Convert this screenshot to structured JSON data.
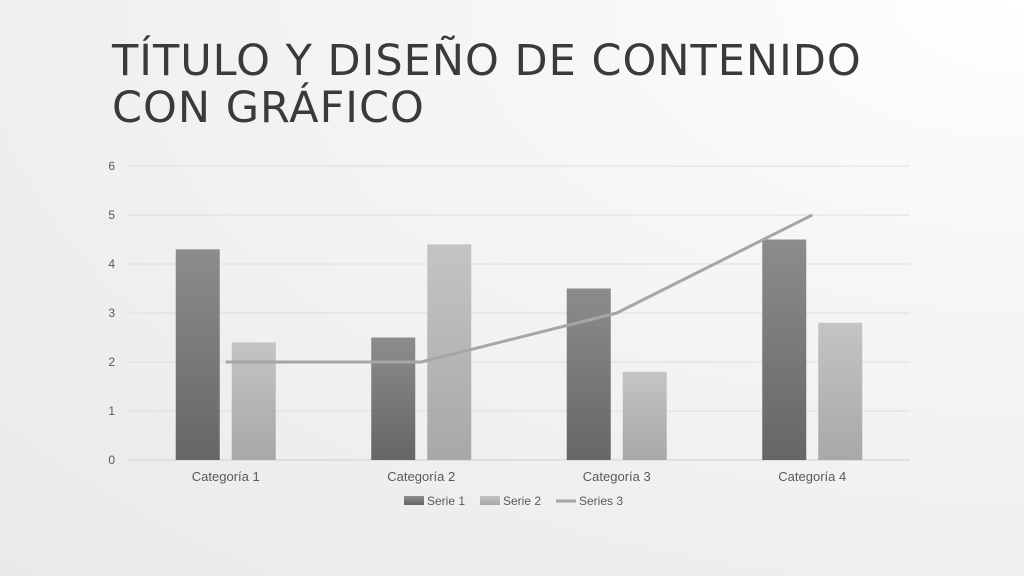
{
  "slide": {
    "title": "TÍTULO Y DISEÑO DE CONTENIDO CON GRÁFICO"
  },
  "chart_data": {
    "type": "bar",
    "categories": [
      "Categoría 1",
      "Categoría 2",
      "Categoría 3",
      "Categoría 4"
    ],
    "series": [
      {
        "name": "Serie 1",
        "type": "bar",
        "values": [
          4.3,
          2.5,
          3.5,
          4.5
        ],
        "color": "#7a7a7a"
      },
      {
        "name": "Serie 2",
        "type": "bar",
        "values": [
          2.4,
          4.4,
          1.8,
          2.8
        ],
        "color": "#bdbdbd"
      },
      {
        "name": "Series 3",
        "type": "line",
        "values": [
          2,
          2,
          3,
          5
        ],
        "color": "#a6a6a6"
      }
    ],
    "ylim": [
      0,
      6
    ],
    "yticks": [
      "0",
      "1",
      "2",
      "3",
      "4",
      "5",
      "6"
    ],
    "grid": true,
    "legend": "bottom"
  }
}
